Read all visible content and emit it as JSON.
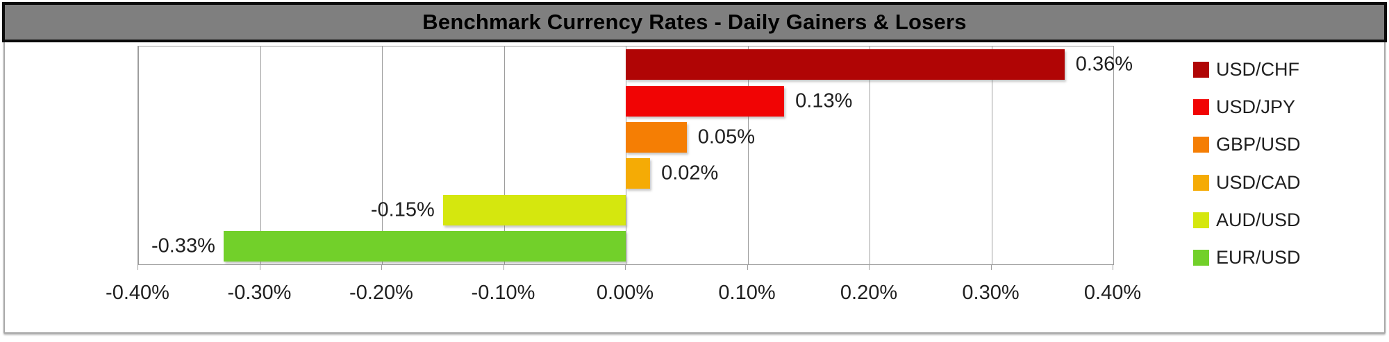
{
  "title": {
    "text": "Benchmark Currency Rates - Daily Gainers & Losers",
    "bg_color": "#7f7f7f",
    "border_color": "#0b0b0b",
    "text_color": "#000000"
  },
  "chart_data": {
    "type": "bar",
    "orientation": "horizontal",
    "series": [
      {
        "name": "USD/CHF",
        "value": 0.36,
        "label": "0.36%",
        "color": "#b00505"
      },
      {
        "name": "USD/JPY",
        "value": 0.13,
        "label": "0.13%",
        "color": "#f10404"
      },
      {
        "name": "GBP/USD",
        "value": 0.05,
        "label": "0.05%",
        "color": "#f57e04"
      },
      {
        "name": "USD/CAD",
        "value": 0.02,
        "label": "0.02%",
        "color": "#f5ab05"
      },
      {
        "name": "AUD/USD",
        "value": -0.15,
        "label": "-0.15%",
        "color": "#d5e70e"
      },
      {
        "name": "EUR/USD",
        "value": -0.33,
        "label": "-0.33%",
        "color": "#72d02a"
      }
    ],
    "xlim": [
      -0.4,
      0.4
    ],
    "x_ticks": [
      {
        "value": -0.4,
        "label": "-0.40%"
      },
      {
        "value": -0.3,
        "label": "-0.30%"
      },
      {
        "value": -0.2,
        "label": "-0.20%"
      },
      {
        "value": -0.1,
        "label": "-0.10%"
      },
      {
        "value": 0.0,
        "label": "0.00%"
      },
      {
        "value": 0.1,
        "label": "0.10%"
      },
      {
        "value": 0.2,
        "label": "0.20%"
      },
      {
        "value": 0.3,
        "label": "0.30%"
      },
      {
        "value": 0.4,
        "label": "0.40%"
      }
    ],
    "grid": "vertical",
    "legend_position": "right",
    "data_labels": "outside-end",
    "xlabel": "",
    "ylabel": ""
  },
  "colors": {
    "gridline": "#9d9d9d",
    "plot_border": "#9d9d9d",
    "frame_border": "#a9a9a9",
    "axis_text": "#1f1f1f",
    "background": "#ffffff"
  }
}
